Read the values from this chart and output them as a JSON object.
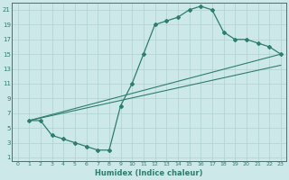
{
  "curve1_x": [
    1,
    2,
    3,
    4,
    5,
    6,
    7,
    8,
    9,
    10,
    11,
    12,
    13,
    14,
    15,
    16,
    17,
    18,
    19,
    20,
    21,
    22,
    23
  ],
  "curve1_y": [
    6,
    6,
    4,
    3.5,
    3,
    2.5,
    2,
    2,
    8,
    11,
    15,
    19,
    19.5,
    20,
    21,
    21.5,
    21,
    18,
    17,
    17,
    16.5,
    16,
    15
  ],
  "line2_x": [
    1,
    23
  ],
  "line2_y": [
    6,
    15
  ],
  "line3_x": [
    1,
    23
  ],
  "line3_y": [
    6,
    13.5
  ],
  "line_color": "#2e7d6e",
  "bg_color": "#cce8e8",
  "grid_color": "#b0d0d0",
  "xlabel": "Humidex (Indice chaleur)",
  "xlim": [
    -0.5,
    23.5
  ],
  "ylim": [
    0.5,
    22
  ],
  "xticks": [
    0,
    1,
    2,
    3,
    4,
    5,
    6,
    7,
    8,
    9,
    10,
    11,
    12,
    13,
    14,
    15,
    16,
    17,
    18,
    19,
    20,
    21,
    22,
    23
  ],
  "yticks": [
    1,
    3,
    5,
    7,
    9,
    11,
    13,
    15,
    17,
    19,
    21
  ],
  "xlabel_fontsize": 6,
  "tick_fontsize": 4.5
}
